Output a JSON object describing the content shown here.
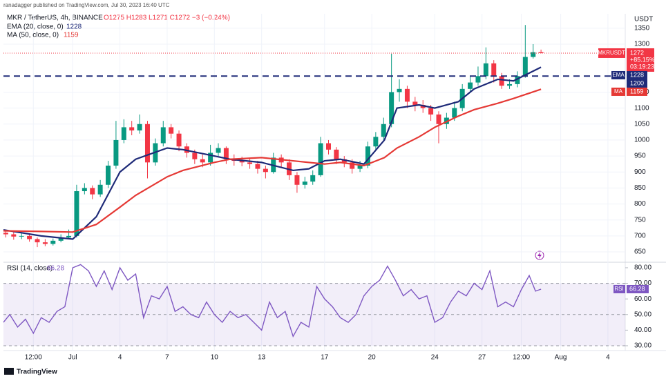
{
  "header": {
    "published": "ranadagger published on TradingView.com, Jul 30, 2023 16:40 UTC",
    "symbol": "MKR / TetherUS, 4h, BINANCE",
    "ohlc": "O1275 H1283 L1271 C1272 −3 (−0.24%)",
    "currency": "USDT"
  },
  "footer": {
    "brand": "TradingView"
  },
  "chart_data": [
    {
      "type": "candlestick",
      "up_color": "#089981",
      "down_color": "#f23645",
      "x": [
        -4.25,
        -3.75,
        -3.25,
        -2.75,
        -2.25,
        -1.75,
        -1.25,
        -0.75,
        -0.25,
        0.25,
        0.75,
        1.25,
        1.75,
        2.25,
        2.75,
        3.25,
        3.75,
        4.25,
        4.75,
        5.25,
        5.75,
        6.25,
        6.75,
        7.25,
        7.75,
        8.25,
        8.75,
        9.25,
        9.75,
        10.25,
        10.75,
        11.25,
        11.75,
        12.25,
        12.75,
        13.25,
        13.75,
        14.25,
        14.75,
        15.25,
        15.75,
        16.25,
        16.75,
        17.25,
        17.75,
        18.25,
        18.75,
        19.25,
        19.75,
        20.25,
        20.75,
        21.25,
        21.75,
        22.25,
        22.75,
        23.25,
        23.75,
        24.25,
        24.75,
        25.25,
        25.75,
        26.25,
        26.75,
        27.25,
        27.75,
        28.25,
        28.75,
        29.25,
        29.75
      ],
      "open": [
        710,
        705,
        698,
        700,
        690,
        680,
        675,
        685,
        695,
        700,
        840,
        850,
        830,
        860,
        920,
        1000,
        1040,
        1030,
        1050,
        930,
        990,
        1040,
        1020,
        980,
        960,
        940,
        930,
        960,
        975,
        940,
        935,
        930,
        925,
        910,
        900,
        945,
        930,
        890,
        860,
        870,
        890,
        990,
        970,
        940,
        930,
        910,
        920,
        980,
        1010,
        1050,
        1150,
        1160,
        1120,
        1110,
        1100,
        1080,
        1050,
        1070,
        1100,
        1160,
        1180,
        1200,
        1240,
        1200,
        1170,
        1175,
        1200,
        1260,
        1275
      ],
      "high": [
        720,
        712,
        708,
        705,
        695,
        690,
        692,
        705,
        720,
        860,
        865,
        858,
        875,
        935,
        1060,
        1065,
        1060,
        1080,
        1060,
        1005,
        1060,
        1050,
        1030,
        990,
        970,
        955,
        985,
        990,
        980,
        955,
        948,
        945,
        935,
        920,
        960,
        955,
        940,
        900,
        885,
        905,
        1010,
        1000,
        978,
        950,
        940,
        935,
        995,
        1025,
        1070,
        1270,
        1190,
        1170,
        1135,
        1125,
        1110,
        1090,
        1085,
        1120,
        1175,
        1200,
        1230,
        1290,
        1250,
        1210,
        1190,
        1215,
        1360,
        1300,
        1283
      ],
      "low": [
        695,
        688,
        690,
        682,
        665,
        668,
        670,
        680,
        690,
        695,
        830,
        815,
        822,
        850,
        910,
        990,
        1015,
        1020,
        880,
        920,
        980,
        1005,
        965,
        945,
        925,
        915,
        920,
        950,
        925,
        920,
        918,
        910,
        895,
        880,
        895,
        915,
        875,
        835,
        848,
        860,
        885,
        955,
        925,
        915,
        895,
        900,
        912,
        970,
        1000,
        1040,
        1120,
        1100,
        1090,
        1085,
        1060,
        990,
        1035,
        1060,
        1090,
        1150,
        1170,
        1190,
        1180,
        1160,
        1160,
        1165,
        1195,
        1255,
        1271
      ],
      "close": [
        705,
        698,
        700,
        690,
        680,
        675,
        685,
        695,
        700,
        840,
        850,
        830,
        860,
        920,
        1000,
        1040,
        1030,
        1050,
        930,
        990,
        1040,
        1020,
        980,
        960,
        940,
        930,
        960,
        975,
        940,
        935,
        930,
        925,
        910,
        900,
        945,
        930,
        890,
        860,
        870,
        890,
        990,
        970,
        940,
        930,
        910,
        920,
        980,
        1010,
        1050,
        1150,
        1160,
        1120,
        1110,
        1100,
        1080,
        1050,
        1070,
        1100,
        1160,
        1180,
        1200,
        1240,
        1200,
        1170,
        1175,
        1200,
        1260,
        1275,
        1272
      ],
      "series": [
        {
          "name": "EMA (20, close, 0)",
          "tag": "EMA",
          "color": "#1e2a78",
          "x": [
            -4.4,
            -2,
            0,
            1.5,
            3,
            4,
            6,
            7,
            9,
            10,
            12,
            14,
            15,
            16,
            17,
            18.5,
            19.8,
            20.6,
            22,
            23,
            24.5,
            25.5,
            27,
            28,
            29.75
          ],
          "values": [
            719,
            700,
            690,
            760,
            900,
            940,
            975,
            970,
            950,
            940,
            930,
            905,
            910,
            935,
            940,
            925,
            1000,
            1100,
            1110,
            1100,
            1120,
            1160,
            1190,
            1185,
            1228
          ]
        },
        {
          "name": "MA (50, close, 0)",
          "tag": "MA",
          "color": "#e53935",
          "x": [
            -4.4,
            -2,
            0,
            1.5,
            3,
            4,
            6,
            7,
            9,
            10,
            12,
            14,
            15,
            16,
            17,
            18.5,
            19.8,
            20.6,
            22,
            23,
            24.5,
            25.5,
            27,
            28,
            29.75
          ],
          "values": [
            716,
            714,
            712,
            736,
            790,
            827,
            885,
            905,
            930,
            940,
            945,
            935,
            930,
            925,
            930,
            920,
            945,
            975,
            1010,
            1040,
            1075,
            1095,
            1115,
            1130,
            1159
          ]
        }
      ],
      "hline": 1200,
      "hline_color": "#1e2a78",
      "price_tag": {
        "symbol": "MKRUSDT",
        "change": "+85.15%",
        "countdown": "03:19:23"
      },
      "xlim": [
        -4.4,
        35.1
      ],
      "ylim": [
        622,
        1395
      ],
      "xticks": [
        {
          "value": -2.5,
          "label": "12:00"
        },
        {
          "value": 0,
          "label": "Jul"
        },
        {
          "value": 3,
          "label": "4"
        },
        {
          "value": 6,
          "label": "7"
        },
        {
          "value": 9,
          "label": "10"
        },
        {
          "value": 12,
          "label": "13"
        },
        {
          "value": 16,
          "label": "17"
        },
        {
          "value": 19,
          "label": "20"
        },
        {
          "value": 23,
          "label": "24"
        },
        {
          "value": 26,
          "label": "27"
        },
        {
          "value": 28.5,
          "label": "12:00"
        },
        {
          "value": 31,
          "label": "Aug"
        },
        {
          "value": 34,
          "label": "4"
        }
      ],
      "yticks": [
        650,
        700,
        750,
        800,
        850,
        900,
        950,
        1000,
        1050,
        1100,
        1150,
        1300,
        1350
      ],
      "grid": true
    },
    {
      "type": "line",
      "title": "RSI (14, close)",
      "series": [
        {
          "name": "RSI (14, close)",
          "tag": "RSI",
          "color": "#7e57c2",
          "x": [
            -4.4,
            -4,
            -3.5,
            -3,
            -2.5,
            -2,
            -1.5,
            -1,
            -0.5,
            0,
            0.5,
            1,
            1.5,
            2,
            2.5,
            3,
            3.5,
            4,
            4.5,
            5,
            5.5,
            6,
            6.5,
            7,
            7.5,
            8,
            8.5,
            9,
            9.5,
            10,
            10.5,
            11,
            11.5,
            12,
            12.5,
            13,
            13.5,
            14,
            14.5,
            15,
            15.5,
            16,
            16.5,
            17,
            17.5,
            18,
            18.5,
            19,
            19.5,
            20,
            20.5,
            21,
            21.5,
            22,
            22.5,
            23,
            23.5,
            24,
            24.5,
            25,
            25.5,
            26,
            26.5,
            27,
            27.5,
            28,
            28.5,
            29,
            29.4,
            29.75
          ],
          "values": [
            45,
            50,
            42,
            47,
            38,
            48,
            45,
            52,
            55,
            80,
            82,
            78,
            68,
            78,
            66,
            80,
            72,
            76,
            48,
            62,
            60,
            68,
            52,
            55,
            50,
            48,
            58,
            50,
            45,
            52,
            48,
            50,
            45,
            40,
            58,
            48,
            52,
            36,
            45,
            42,
            68,
            60,
            55,
            48,
            45,
            50,
            62,
            68,
            72,
            81,
            72,
            62,
            66,
            60,
            62,
            45,
            48,
            58,
            65,
            62,
            70,
            66,
            78,
            55,
            58,
            55,
            66,
            75,
            65,
            66.28
          ]
        }
      ],
      "levels": [
        70,
        50,
        30
      ],
      "band_color": "#7e57c2",
      "ylim": [
        26.9,
        82.2
      ],
      "yticks": [
        {
          "value": 30,
          "label": "30.00"
        },
        {
          "value": 40,
          "label": "40.00"
        },
        {
          "value": 50,
          "label": "50.00"
        },
        {
          "value": 60,
          "label": "60.00"
        },
        {
          "value": 70,
          "label": "70.00"
        },
        {
          "value": 80,
          "label": "80.00"
        }
      ]
    }
  ]
}
